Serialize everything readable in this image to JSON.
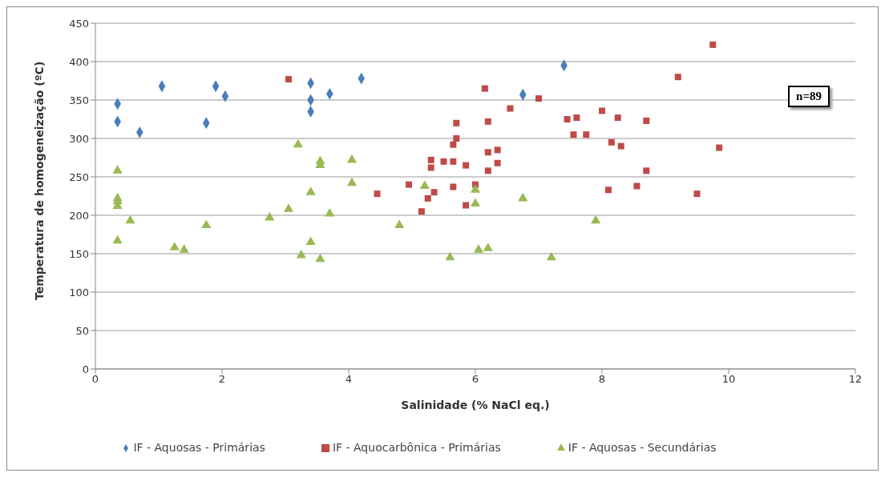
{
  "chart_data": {
    "type": "scatter",
    "xlabel": "Salinidade (% NaCl eq.)",
    "ylabel": "Temperatura de homogeneização (ºC)",
    "xlim": [
      0,
      12
    ],
    "xticks": [
      0,
      2,
      4,
      6,
      8,
      10,
      12
    ],
    "ylim": [
      0,
      450
    ],
    "yticks": [
      0,
      50,
      100,
      150,
      200,
      250,
      300,
      350,
      400,
      450
    ],
    "grid": "y",
    "legend": "bottom",
    "annotations": [
      "n=89"
    ],
    "series": [
      {
        "name": "IF - Aquosas - Primárias",
        "color": "#4a7ebb",
        "marker": "diamond",
        "x": [
          0.35,
          0.35,
          0.7,
          1.05,
          1.75,
          1.9,
          2.05,
          3.4,
          3.4,
          3.4,
          3.7,
          4.2,
          6.75,
          7.4
        ],
        "values": [
          345,
          322,
          308,
          368,
          320,
          368,
          355,
          372,
          350,
          335,
          358,
          378,
          357,
          395
        ]
      },
      {
        "name": "IF - Aquocarbônica - Primárias",
        "color": "#be4b48",
        "marker": "square",
        "x": [
          3.05,
          4.45,
          4.95,
          5.15,
          5.25,
          5.35,
          5.3,
          5.3,
          5.5,
          5.65,
          5.65,
          5.65,
          5.7,
          5.7,
          5.85,
          5.85,
          6.0,
          6.15,
          6.2,
          6.2,
          6.2,
          6.35,
          6.35,
          6.55,
          7.0,
          7.45,
          7.55,
          7.6,
          7.75,
          8.0,
          8.1,
          8.15,
          8.25,
          8.3,
          8.55,
          8.7,
          8.7,
          9.2,
          9.5,
          9.75,
          9.85
        ],
        "values": [
          377,
          228,
          240,
          205,
          222,
          230,
          262,
          272,
          270,
          270,
          237,
          292,
          300,
          320,
          265,
          213,
          240,
          365,
          322,
          282,
          258,
          285,
          268,
          339,
          352,
          325,
          305,
          327,
          305,
          336,
          233,
          295,
          327,
          290,
          238,
          323,
          258,
          380,
          228,
          422,
          288
        ]
      },
      {
        "name": "IF - Aquosas - Secundárias",
        "color": "#98b954",
        "marker": "triangle",
        "x": [
          0.35,
          0.35,
          0.35,
          0.35,
          0.35,
          0.55,
          1.25,
          1.4,
          1.75,
          2.75,
          3.05,
          3.2,
          3.25,
          3.4,
          3.4,
          3.55,
          3.55,
          3.55,
          3.7,
          4.05,
          4.05,
          4.8,
          5.2,
          5.6,
          6.0,
          6.0,
          6.05,
          6.2,
          6.75,
          7.2,
          7.9
        ],
        "values": [
          258,
          222,
          218,
          212,
          167,
          193,
          158,
          155,
          187,
          197,
          208,
          292,
          148,
          230,
          165,
          270,
          265,
          143,
          202,
          272,
          242,
          187,
          238,
          145,
          215,
          233,
          155,
          157,
          222,
          145,
          193
        ]
      }
    ]
  }
}
